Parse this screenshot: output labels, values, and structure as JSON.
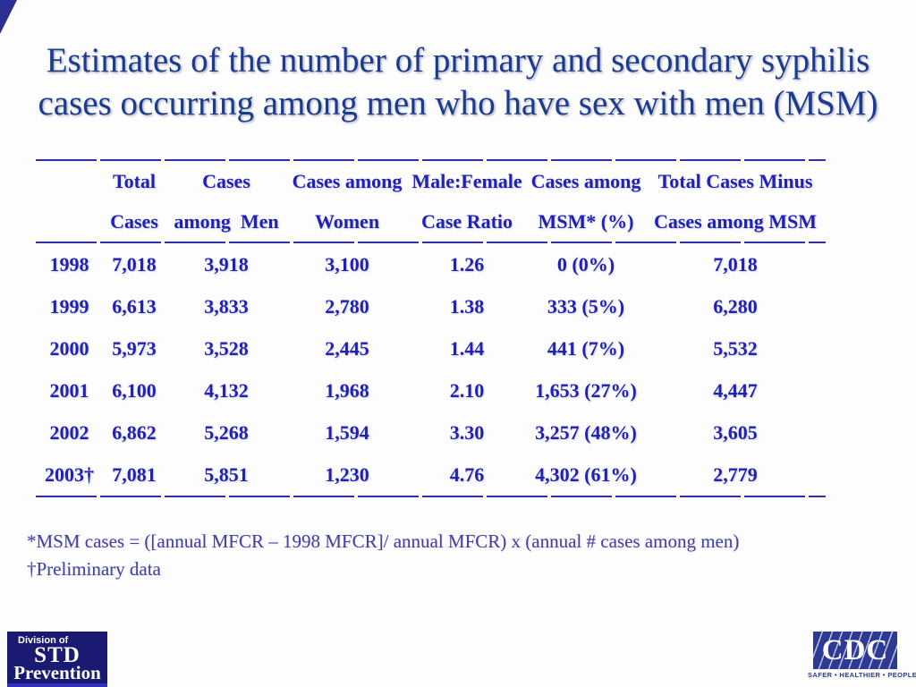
{
  "title": {
    "line1": "Estimates of the number of primary and secondary syphilis",
    "line2": "cases occurring among men who have sex with men (MSM)"
  },
  "table": {
    "headers": [
      {
        "line1": "",
        "line2": ""
      },
      {
        "line1": "Total",
        "line2": "Cases"
      },
      {
        "line1": "Cases",
        "line2": "among  Men"
      },
      {
        "line1": "Cases among",
        "line2": "Women"
      },
      {
        "line1": "Male:Female",
        "line2": "Case Ratio"
      },
      {
        "line1": "Cases among",
        "line2": "MSM* (%)"
      },
      {
        "line1": "Total Cases Minus",
        "line2": "Cases among MSM"
      }
    ],
    "rows": [
      {
        "year": "1998",
        "total": "7,018",
        "men": "3,918",
        "women": "3,100",
        "ratio": "1.26",
        "msm": "0 (0%)",
        "minus": "7,018"
      },
      {
        "year": "1999",
        "total": "6,613",
        "men": "3,833",
        "women": "2,780",
        "ratio": "1.38",
        "msm": "333 (5%)",
        "minus": "6,280"
      },
      {
        "year": "2000",
        "total": "5,973",
        "men": "3,528",
        "women": "2,445",
        "ratio": "1.44",
        "msm": "441 (7%)",
        "minus": "5,532"
      },
      {
        "year": "2001",
        "total": "6,100",
        "men": "4,132",
        "women": "1,968",
        "ratio": "2.10",
        "msm": "1,653 (27%)",
        "minus": "4,447"
      },
      {
        "year": "2002",
        "total": "6,862",
        "men": "5,268",
        "women": "1,594",
        "ratio": "3.30",
        "msm": "3,257 (48%)",
        "minus": "3,605"
      },
      {
        "year": "2003†",
        "total": "7,081",
        "men": "5,851",
        "women": "1,230",
        "ratio": "4.76",
        "msm": "4,302 (61%)",
        "minus": "2,779"
      }
    ]
  },
  "footnotes": {
    "line1": "*MSM cases = ([annual MFCR – 1998 MFCR]/ annual MFCR) x (annual # cases among men)",
    "line2": "†Preliminary data"
  },
  "logos": {
    "std": {
      "line1": "Division of",
      "line2": "STD",
      "line3": "Prevention"
    },
    "cdc": {
      "letters": "CDC",
      "tagline": "SAFER • HEALTHIER • PEOPLE™"
    }
  },
  "colors": {
    "title_text": "#1c3b8d",
    "table_text": "#2121b6",
    "rule": "#2e2ea8",
    "footnote_text": "#4040a6",
    "std_logo_bg": "#1a1a72",
    "cdc_logo_bg": "#2d3a94"
  }
}
